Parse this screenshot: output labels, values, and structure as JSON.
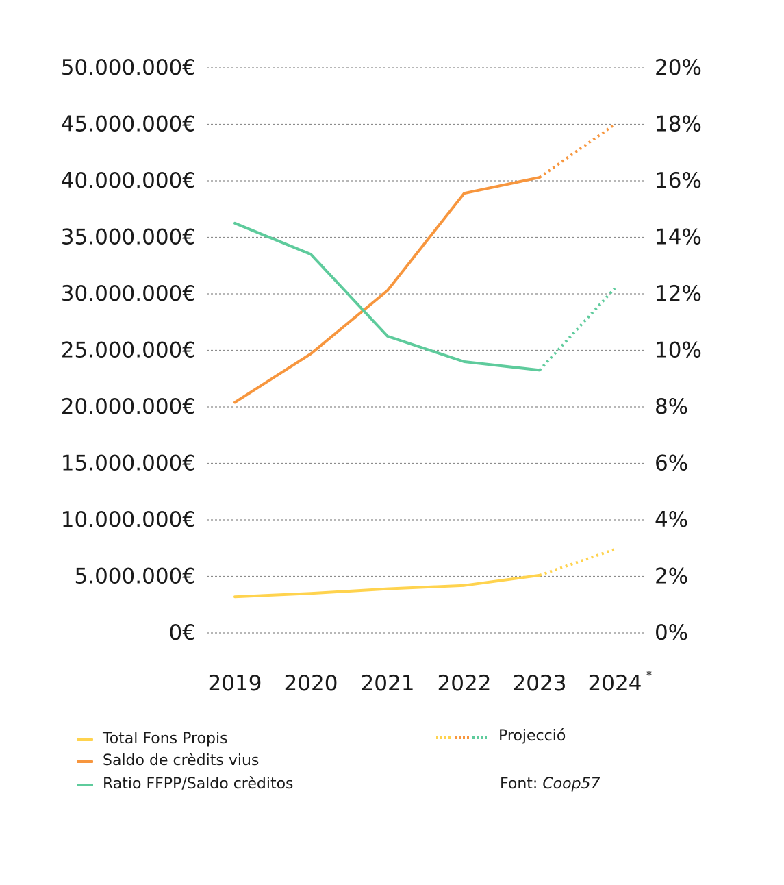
{
  "chart_data": {
    "type": "line",
    "categories": [
      "2019",
      "2020",
      "2021",
      "2022",
      "2023",
      "2024"
    ],
    "projection_marker": "*",
    "y_left": {
      "ylim": [
        0,
        50000000
      ],
      "ticks": [
        "0€",
        "5.000.000€",
        "10.000.000€",
        "15.000.000€",
        "20.000.000€",
        "25.000.000€",
        "30.000.000€",
        "35.000.000€",
        "40.000.000€",
        "45.000.000€",
        "50.000.000€"
      ]
    },
    "y_right": {
      "ylim": [
        0,
        20
      ],
      "ticks": [
        "0%",
        "2%",
        "4%",
        "6%",
        "8%",
        "10%",
        "12%",
        "14%",
        "16%",
        "18%",
        "20%"
      ]
    },
    "grid": true,
    "series": [
      {
        "name": "Total Fons Propis",
        "axis": "left",
        "color": "#ffd34e",
        "values": [
          3200000,
          3500000,
          3900000,
          4200000,
          5100000,
          7400000
        ],
        "projected_from_index": 4
      },
      {
        "name": "Saldo de crèdits vius",
        "axis": "left",
        "color": "#f7963e",
        "values": [
          20400000,
          24700000,
          30300000,
          38900000,
          40300000,
          45000000
        ],
        "projected_from_index": 4
      },
      {
        "name": "Ratio FFPP/Saldo crèditos",
        "axis": "right",
        "color": "#5ecb9c",
        "values": [
          14.5,
          13.4,
          10.5,
          9.6,
          9.3,
          12.2
        ],
        "projected_from_index": 4
      }
    ],
    "legend": {
      "placement": "bottom",
      "projection_label": "Projecció",
      "source_prefix": "Font: ",
      "source_name": "Coop57"
    }
  }
}
